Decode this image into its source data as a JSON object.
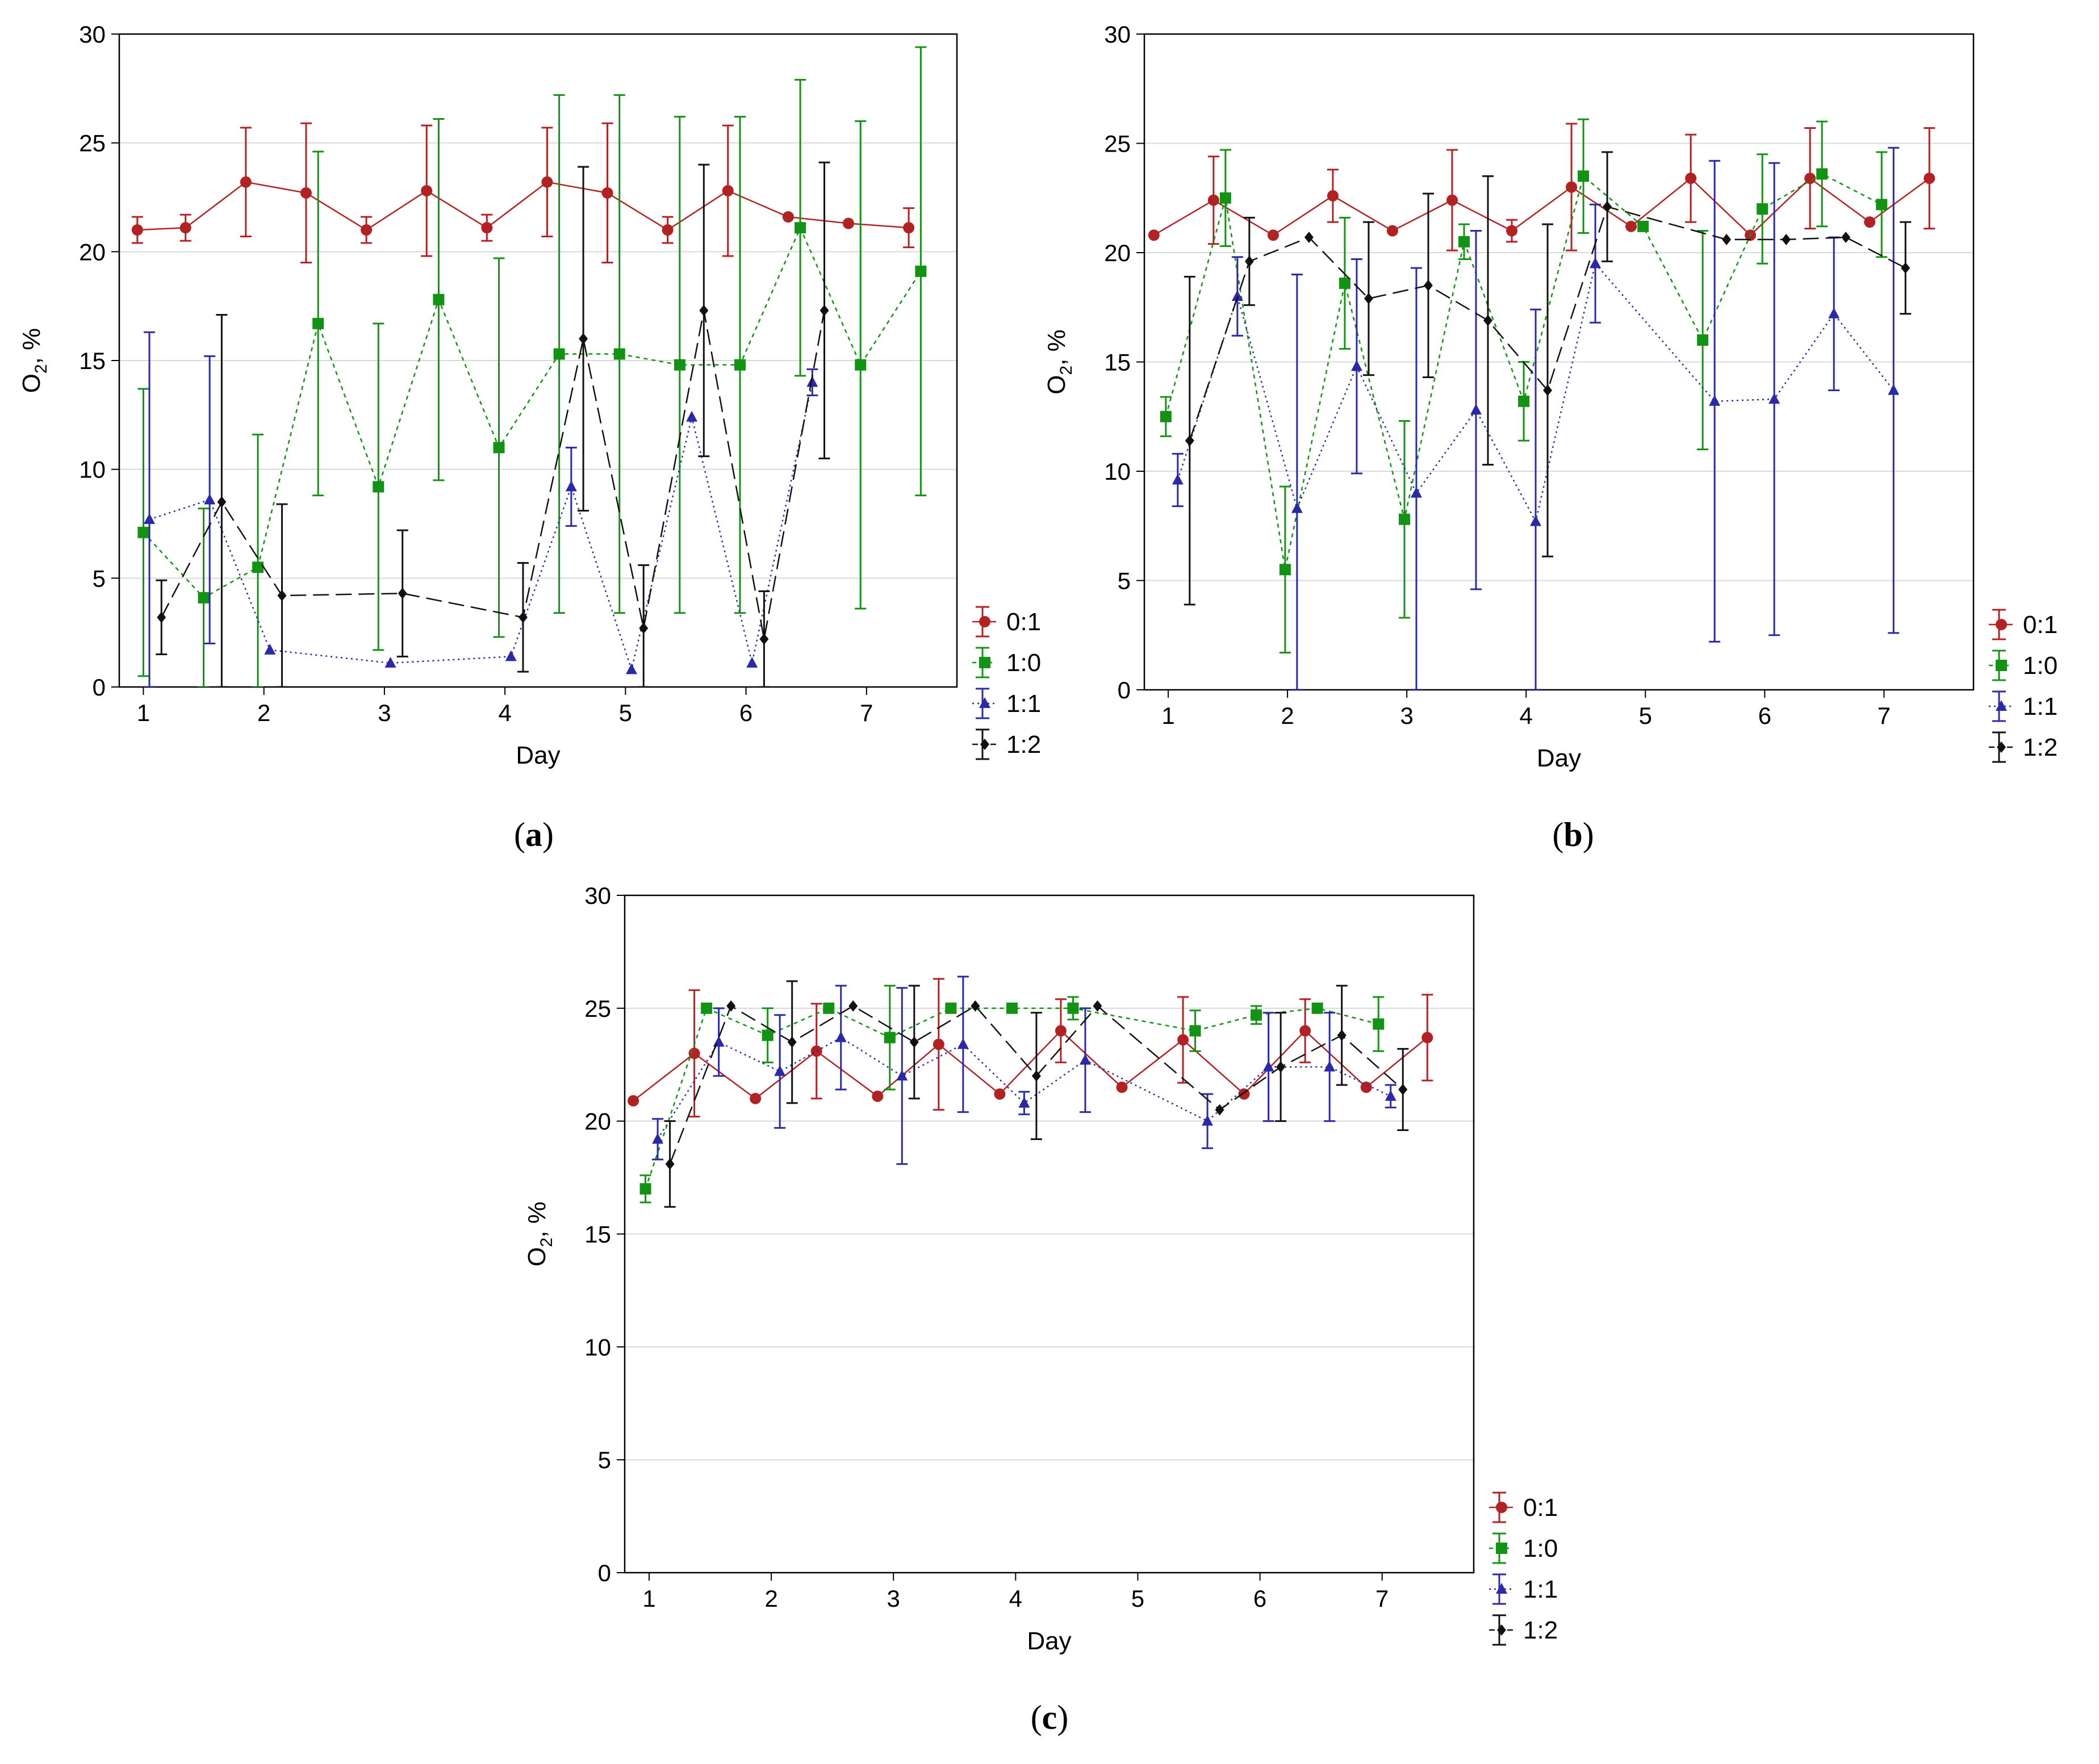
{
  "figure": {
    "axis_xlabel": "Day",
    "axis_ylabel_main": "O",
    "axis_ylabel_sub": "2",
    "axis_ylabel_tail": ", %"
  },
  "series_style": {
    "0:1": {
      "color": "#b22222",
      "marker": "circle",
      "dash": ""
    },
    "1:0": {
      "color": "#139313",
      "marker": "square",
      "dash": "7,7"
    },
    "1:1": {
      "color": "#2a2aa8",
      "marker": "triangle",
      "dash": "3,6"
    },
    "1:2": {
      "color": "#111111",
      "marker": "diamond",
      "dash": "28,12"
    }
  },
  "chart_data": [
    {
      "panel": "a",
      "type": "line",
      "xlabel": "Day",
      "ylabel": "O2, %",
      "xlim": [
        0.8,
        7.75
      ],
      "ylim": [
        0,
        30
      ],
      "xticks": [
        "1",
        "2",
        "3",
        "4",
        "5",
        "6",
        "7"
      ],
      "yticks": [
        "0",
        "5",
        "10",
        "15",
        "20",
        "25",
        "30"
      ],
      "grid": true,
      "legend": [
        "0:1",
        "1:0",
        "1:1",
        "1:2"
      ],
      "series": [
        {
          "name": "0:1",
          "x": [
            0.95,
            1.35,
            1.85,
            2.35,
            2.85,
            3.35,
            3.85,
            4.35,
            4.85,
            5.35,
            5.85,
            6.35,
            6.85,
            7.35
          ],
          "y": [
            21.0,
            21.1,
            23.2,
            22.7,
            21.0,
            22.8,
            21.1,
            23.2,
            22.7,
            21.0,
            22.8,
            21.6,
            21.3,
            21.1
          ],
          "err": [
            0.6,
            0.6,
            2.5,
            3.2,
            0.6,
            3.0,
            0.6,
            2.5,
            3.2,
            0.6,
            3.0,
            0.0,
            0.0,
            0.9
          ]
        },
        {
          "name": "1:0",
          "x": [
            1.0,
            1.5,
            1.95,
            2.45,
            2.95,
            3.45,
            3.95,
            4.45,
            4.95,
            5.45,
            5.95,
            6.45,
            6.95,
            7.45
          ],
          "y": [
            7.1,
            4.1,
            5.5,
            16.7,
            9.2,
            17.8,
            11.0,
            15.3,
            15.3,
            14.8,
            14.8,
            21.1,
            14.8,
            19.1
          ],
          "err": [
            6.6,
            4.1,
            6.1,
            7.9,
            7.5,
            8.3,
            8.7,
            11.9,
            11.9,
            11.4,
            11.4,
            6.8,
            11.2,
            10.3
          ]
        },
        {
          "name": "1:1",
          "x": [
            1.05,
            1.55,
            2.05,
            3.05,
            4.05,
            4.55,
            5.05,
            5.55,
            6.05,
            6.55
          ],
          "y": [
            7.7,
            8.6,
            1.7,
            1.1,
            1.4,
            9.2,
            0.8,
            12.4,
            1.1,
            14.0
          ],
          "err": [
            8.6,
            6.6,
            0.0,
            0.0,
            0.0,
            1.8,
            0.0,
            0.0,
            0.0,
            0.6
          ]
        },
        {
          "name": "1:2",
          "x": [
            1.15,
            1.65,
            2.15,
            3.15,
            4.15,
            4.65,
            5.15,
            5.65,
            6.15,
            6.65
          ],
          "y": [
            3.2,
            8.5,
            4.2,
            4.3,
            3.2,
            16.0,
            2.7,
            17.3,
            2.2,
            17.3
          ],
          "err": [
            1.7,
            8.6,
            4.2,
            2.9,
            2.5,
            7.9,
            2.9,
            6.7,
            2.2,
            6.8
          ]
        }
      ]
    },
    {
      "panel": "b",
      "type": "line",
      "xlabel": "Day",
      "ylabel": "O2, %",
      "xlim": [
        0.8,
        7.75
      ],
      "ylim": [
        0,
        30
      ],
      "xticks": [
        "1",
        "2",
        "3",
        "4",
        "5",
        "6",
        "7"
      ],
      "yticks": [
        "0",
        "5",
        "10",
        "15",
        "20",
        "25",
        "30"
      ],
      "grid": true,
      "legend": [
        "0:1",
        "1:0",
        "1:1",
        "1:2"
      ],
      "series": [
        {
          "name": "0:1",
          "x": [
            0.88,
            1.38,
            1.88,
            2.38,
            2.88,
            3.38,
            3.88,
            4.38,
            4.88,
            5.38,
            5.88,
            6.38,
            6.88,
            7.38
          ],
          "y": [
            20.8,
            22.4,
            20.8,
            22.6,
            21.0,
            22.4,
            21.0,
            23.0,
            21.2,
            23.4,
            20.8,
            23.4,
            21.4,
            23.4
          ],
          "err": [
            0.0,
            2.0,
            0.0,
            1.2,
            0.0,
            2.3,
            0.5,
            2.9,
            0.0,
            2.0,
            0.0,
            2.3,
            0.0,
            2.3
          ]
        },
        {
          "name": "1:0",
          "x": [
            0.98,
            1.48,
            1.98,
            2.48,
            2.98,
            3.48,
            3.98,
            4.48,
            4.98,
            5.48,
            5.98,
            6.48,
            6.98
          ],
          "y": [
            12.5,
            22.5,
            5.5,
            18.6,
            7.8,
            20.5,
            13.2,
            23.5,
            21.2,
            16.0,
            22.0,
            23.6,
            22.2
          ],
          "err": [
            0.9,
            2.2,
            3.8,
            3.0,
            4.5,
            0.8,
            1.8,
            2.6,
            0.0,
            5.0,
            2.5,
            2.4,
            2.4
          ]
        },
        {
          "name": "1:1",
          "x": [
            1.08,
            1.58,
            2.08,
            2.58,
            3.08,
            3.58,
            4.08,
            4.58,
            5.58,
            6.08,
            6.58,
            7.08
          ],
          "y": [
            9.6,
            18.0,
            8.3,
            14.8,
            9.0,
            12.8,
            7.7,
            19.5,
            13.2,
            13.3,
            17.2,
            13.7
          ],
          "err": [
            1.2,
            1.8,
            10.7,
            4.9,
            10.3,
            8.2,
            9.7,
            2.7,
            11.0,
            10.8,
            3.5,
            11.1
          ]
        },
        {
          "name": "1:2",
          "x": [
            1.18,
            1.68,
            2.18,
            2.68,
            3.18,
            3.68,
            4.18,
            4.68,
            5.68,
            6.18,
            6.68,
            7.18
          ],
          "y": [
            11.4,
            19.6,
            20.7,
            17.9,
            18.5,
            16.9,
            13.7,
            22.1,
            20.6,
            20.6,
            20.7,
            19.3
          ],
          "err": [
            7.5,
            2.0,
            0.0,
            3.5,
            4.2,
            6.6,
            7.6,
            2.5,
            0.0,
            0.0,
            0.0,
            2.1
          ]
        }
      ]
    },
    {
      "panel": "c",
      "type": "line",
      "xlabel": "Day",
      "ylabel": "O2, %",
      "xlim": [
        0.8,
        7.75
      ],
      "ylim": [
        0,
        30
      ],
      "xticks": [
        "1",
        "2",
        "3",
        "4",
        "5",
        "6",
        "7"
      ],
      "yticks": [
        "0",
        "5",
        "10",
        "15",
        "20",
        "25",
        "30"
      ],
      "grid": true,
      "legend": [
        "0:1",
        "1:0",
        "1:1",
        "1:2"
      ],
      "series": [
        {
          "name": "0:1",
          "x": [
            0.87,
            1.37,
            1.87,
            2.37,
            2.87,
            3.37,
            3.87,
            4.37,
            4.87,
            5.37,
            5.87,
            6.37,
            6.87,
            7.37
          ],
          "y": [
            20.9,
            23.0,
            21.0,
            23.1,
            21.1,
            23.4,
            21.2,
            24.0,
            21.5,
            23.6,
            21.2,
            24.0,
            21.5,
            23.7
          ],
          "err": [
            0.0,
            2.8,
            0.0,
            2.1,
            0.0,
            2.9,
            0.0,
            1.4,
            0.0,
            1.9,
            0.0,
            1.4,
            0.0,
            1.9
          ]
        },
        {
          "name": "1:0",
          "x": [
            0.97,
            1.47,
            1.97,
            2.47,
            2.97,
            3.47,
            3.97,
            4.47,
            5.47,
            5.97,
            6.47,
            6.97
          ],
          "y": [
            17.0,
            25.0,
            23.8,
            25.0,
            23.7,
            25.0,
            25.0,
            25.0,
            24.0,
            24.7,
            25.0,
            24.3
          ],
          "err": [
            0.6,
            0.0,
            1.2,
            0.0,
            2.3,
            0.0,
            0.0,
            0.5,
            0.9,
            0.4,
            0.0,
            1.2
          ]
        },
        {
          "name": "1:1",
          "x": [
            1.07,
            1.57,
            2.07,
            2.57,
            3.07,
            3.57,
            4.07,
            4.57,
            5.57,
            6.07,
            6.57,
            7.07
          ],
          "y": [
            19.2,
            23.5,
            22.2,
            23.7,
            22.0,
            23.4,
            20.8,
            22.7,
            20.0,
            22.4,
            22.4,
            21.1
          ],
          "err": [
            0.9,
            1.5,
            2.5,
            2.3,
            3.9,
            3.0,
            0.5,
            2.3,
            1.2,
            2.4,
            2.4,
            0.5
          ]
        },
        {
          "name": "1:2",
          "x": [
            1.17,
            1.67,
            2.17,
            2.67,
            3.17,
            3.67,
            4.17,
            4.67,
            5.67,
            6.17,
            6.67,
            7.17
          ],
          "y": [
            18.1,
            25.1,
            23.5,
            25.1,
            23.5,
            25.1,
            22.0,
            25.1,
            20.5,
            22.4,
            23.8,
            21.4
          ],
          "err": [
            1.9,
            0.0,
            2.7,
            0.0,
            2.5,
            0.0,
            2.8,
            0.0,
            0.0,
            2.4,
            2.2,
            1.8
          ]
        }
      ]
    }
  ]
}
